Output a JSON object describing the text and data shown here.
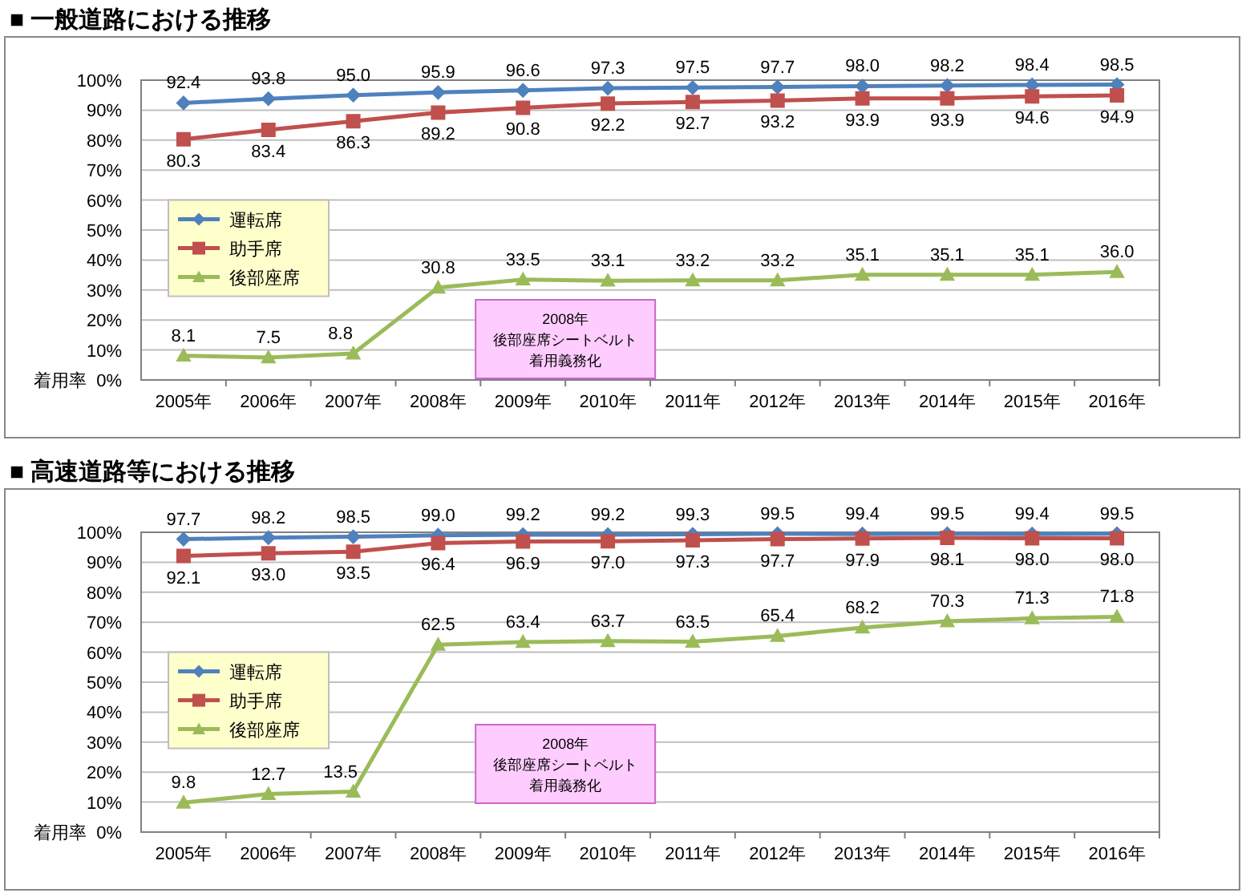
{
  "chart_data": [
    {
      "type": "line",
      "title": "■ 一般道路における推移",
      "ylabel": "着用率",
      "categories": [
        "2005年",
        "2006年",
        "2007年",
        "2008年",
        "2009年",
        "2010年",
        "2011年",
        "2012年",
        "2013年",
        "2014年",
        "2015年",
        "2016年"
      ],
      "series": [
        {
          "name": "運転席",
          "color": "#4f81bd",
          "marker": "diamond",
          "values": [
            92.4,
            93.8,
            95.0,
            95.9,
            96.6,
            97.3,
            97.5,
            97.7,
            98.0,
            98.2,
            98.4,
            98.5
          ],
          "value_labels": [
            "92.4",
            "93.8",
            "95.0",
            "95.9",
            "96.6",
            "97.3",
            "97.5",
            "97.7",
            "98.0",
            "98.2",
            "98.4",
            "98.5"
          ]
        },
        {
          "name": "助手席",
          "color": "#c0504d",
          "marker": "square",
          "values": [
            80.3,
            83.4,
            86.3,
            89.2,
            90.8,
            92.2,
            92.7,
            93.2,
            93.9,
            93.9,
            94.6,
            94.9
          ],
          "value_labels": [
            "80.3",
            "83.4",
            "86.3",
            "89.2",
            "90.8",
            "92.2",
            "92.7",
            "93.2",
            "93.9",
            "93.9",
            "94.6",
            "94.9"
          ]
        },
        {
          "name": "後部座席",
          "color": "#9bbb59",
          "marker": "triangle",
          "values": [
            8.1,
            7.5,
            8.8,
            30.8,
            33.5,
            33.1,
            33.2,
            33.2,
            35.1,
            35.1,
            35.1,
            36.0
          ],
          "value_labels": [
            "8.1",
            "7.5",
            "8.8",
            "30.8",
            "33.5",
            "33.1",
            "33.2",
            "33.2",
            "35.1",
            "35.1",
            "35.1",
            "36.0"
          ]
        }
      ],
      "ylim": [
        0,
        100
      ],
      "yticks": [
        {
          "value": 0,
          "label": "0%"
        },
        {
          "value": 10,
          "label": "10%"
        },
        {
          "value": 20,
          "label": "20%"
        },
        {
          "value": 30,
          "label": "30%"
        },
        {
          "value": 40,
          "label": "40%"
        },
        {
          "value": 50,
          "label": "50%"
        },
        {
          "value": 60,
          "label": "60%"
        },
        {
          "value": 70,
          "label": "70%"
        },
        {
          "value": 80,
          "label": "80%"
        },
        {
          "value": 90,
          "label": "90%"
        },
        {
          "value": 100,
          "label": "100%"
        }
      ],
      "grid": "y",
      "legend": "left",
      "annotations": [
        "2008年",
        "後部座席シートベルト",
        "着用義務化"
      ]
    },
    {
      "type": "line",
      "title": "■ 高速道路等における推移",
      "ylabel": "着用率",
      "categories": [
        "2005年",
        "2006年",
        "2007年",
        "2008年",
        "2009年",
        "2010年",
        "2011年",
        "2012年",
        "2013年",
        "2014年",
        "2015年",
        "2016年"
      ],
      "series": [
        {
          "name": "運転席",
          "color": "#4f81bd",
          "marker": "diamond",
          "values": [
            97.7,
            98.2,
            98.5,
            99.0,
            99.2,
            99.2,
            99.3,
            99.5,
            99.4,
            99.5,
            99.4,
            99.5
          ],
          "value_labels": [
            "97.7",
            "98.2",
            "98.5",
            "99.0",
            "99.2",
            "99.2",
            "99.3",
            "99.5",
            "99.4",
            "99.5",
            "99.4",
            "99.5"
          ]
        },
        {
          "name": "助手席",
          "color": "#c0504d",
          "marker": "square",
          "values": [
            92.1,
            93.0,
            93.5,
            96.4,
            96.9,
            97.0,
            97.3,
            97.7,
            97.9,
            98.1,
            98.0,
            98.0
          ],
          "value_labels": [
            "92.1",
            "93.0",
            "93.5",
            "96.4",
            "96.9",
            "97.0",
            "97.3",
            "97.7",
            "97.9",
            "98.1",
            "98.0",
            "98.0"
          ]
        },
        {
          "name": "後部座席",
          "color": "#9bbb59",
          "marker": "triangle",
          "values": [
            9.8,
            12.7,
            13.5,
            62.5,
            63.4,
            63.7,
            63.5,
            65.4,
            68.2,
            70.3,
            71.3,
            71.8
          ],
          "value_labels": [
            "9.8",
            "12.7",
            "13.5",
            "62.5",
            "63.4",
            "63.7",
            "63.5",
            "65.4",
            "68.2",
            "70.3",
            "71.3",
            "71.8"
          ]
        }
      ],
      "ylim": [
        0,
        100
      ],
      "yticks": [
        {
          "value": 0,
          "label": "0%"
        },
        {
          "value": 10,
          "label": "10%"
        },
        {
          "value": 20,
          "label": "20%"
        },
        {
          "value": 30,
          "label": "30%"
        },
        {
          "value": 40,
          "label": "40%"
        },
        {
          "value": 50,
          "label": "50%"
        },
        {
          "value": 60,
          "label": "60%"
        },
        {
          "value": 70,
          "label": "70%"
        },
        {
          "value": 80,
          "label": "80%"
        },
        {
          "value": 90,
          "label": "90%"
        },
        {
          "value": 100,
          "label": "100%"
        }
      ],
      "grid": "y",
      "legend": "left",
      "annotations": [
        "2008年",
        "後部座席シートベルト",
        "着用義務化"
      ]
    }
  ]
}
